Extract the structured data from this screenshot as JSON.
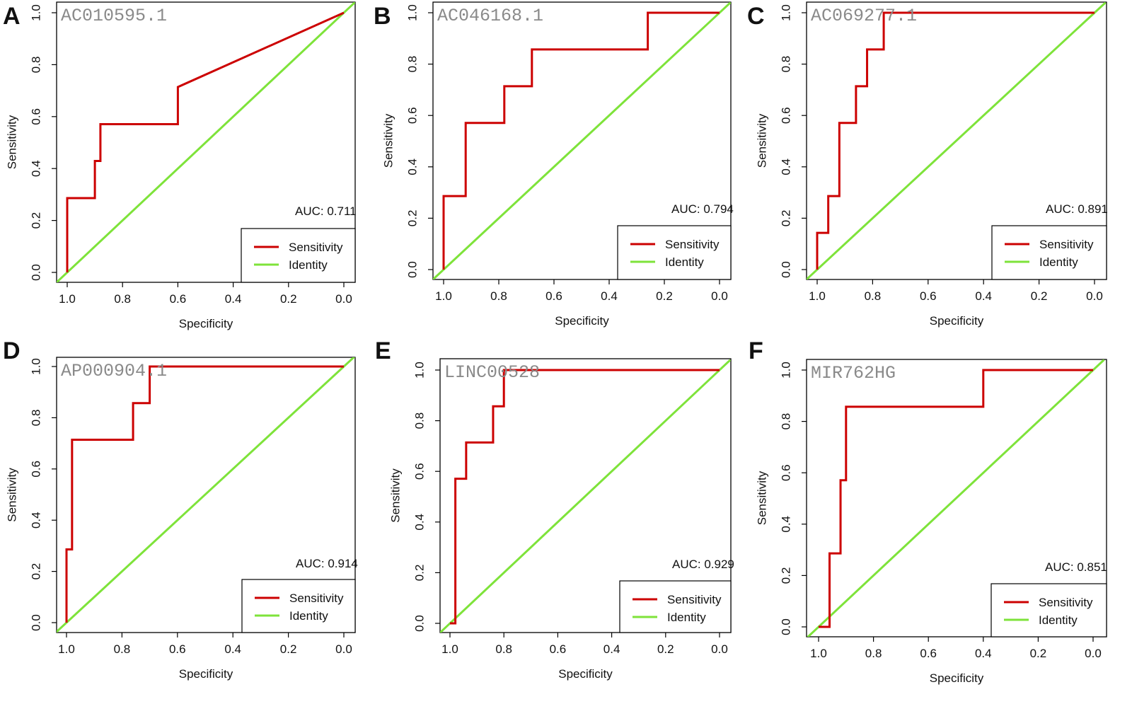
{
  "colors": {
    "roc": "#cc0000",
    "identity": "#7ee33a",
    "frame": "#000000"
  },
  "chart_data": [
    {
      "panel": "A",
      "type": "line",
      "title": "AC010595.1",
      "xlabel": "Specificity",
      "ylabel": "Sensitivity",
      "xlim": [
        1.0,
        0.0
      ],
      "ylim": [
        0.0,
        1.0
      ],
      "xticks": [
        "1.0",
        "0.8",
        "0.6",
        "0.4",
        "0.2",
        "0.0"
      ],
      "yticks": [
        "0.0",
        "0.2",
        "0.4",
        "0.6",
        "0.8",
        "1.0"
      ],
      "auc_text": "AUC: 0.711",
      "legend": [
        "Sensitivity",
        "Identity"
      ],
      "legend_position": "bottom-right",
      "series": [
        {
          "name": "Sensitivity",
          "x": [
            1.0,
            1.0,
            0.9,
            0.9,
            0.88,
            0.88,
            0.6,
            0.6,
            0.0
          ],
          "y": [
            0.0,
            0.286,
            0.286,
            0.429,
            0.429,
            0.571,
            0.571,
            0.714,
            1.0
          ]
        },
        {
          "name": "Identity",
          "x": [
            1.04,
            -0.04
          ],
          "y": [
            -0.04,
            1.04
          ]
        }
      ]
    },
    {
      "panel": "B",
      "type": "line",
      "title": "AC046168.1",
      "xlabel": "Specificity",
      "ylabel": "Sensitivity",
      "xlim": [
        1.0,
        0.0
      ],
      "ylim": [
        0.0,
        1.0
      ],
      "xticks": [
        "1.0",
        "0.8",
        "0.6",
        "0.4",
        "0.2",
        "0.0"
      ],
      "yticks": [
        "0.0",
        "0.2",
        "0.4",
        "0.6",
        "0.8",
        "1.0"
      ],
      "auc_text": "AUC: 0.794",
      "legend": [
        "Sensitivity",
        "Identity"
      ],
      "legend_position": "bottom-right",
      "series": [
        {
          "name": "Sensitivity",
          "x": [
            1.0,
            1.0,
            0.92,
            0.92,
            0.78,
            0.78,
            0.68,
            0.68,
            0.26,
            0.26,
            0.0
          ],
          "y": [
            0.0,
            0.286,
            0.286,
            0.571,
            0.571,
            0.714,
            0.714,
            0.857,
            0.857,
            1.0,
            1.0
          ]
        },
        {
          "name": "Identity",
          "x": [
            1.04,
            -0.04
          ],
          "y": [
            -0.04,
            1.04
          ]
        }
      ]
    },
    {
      "panel": "C",
      "type": "line",
      "title": "AC069277.1",
      "xlabel": "Specificity",
      "ylabel": "Sensitivity",
      "xlim": [
        1.0,
        0.0
      ],
      "ylim": [
        0.0,
        1.0
      ],
      "xticks": [
        "1.0",
        "0.8",
        "0.6",
        "0.4",
        "0.2",
        "0.0"
      ],
      "yticks": [
        "0.0",
        "0.2",
        "0.4",
        "0.6",
        "0.8",
        "1.0"
      ],
      "auc_text": "AUC: 0.891",
      "legend": [
        "Sensitivity",
        "Identity"
      ],
      "legend_position": "bottom-right",
      "series": [
        {
          "name": "Sensitivity",
          "x": [
            1.0,
            1.0,
            0.96,
            0.96,
            0.92,
            0.92,
            0.86,
            0.86,
            0.82,
            0.82,
            0.76,
            0.76,
            0.0
          ],
          "y": [
            0.0,
            0.143,
            0.143,
            0.286,
            0.286,
            0.571,
            0.571,
            0.714,
            0.714,
            0.857,
            0.857,
            1.0,
            1.0
          ]
        },
        {
          "name": "Identity",
          "x": [
            1.04,
            -0.04
          ],
          "y": [
            -0.04,
            1.04
          ]
        }
      ]
    },
    {
      "panel": "D",
      "type": "line",
      "title": "AP000904.1",
      "xlabel": "Specificity",
      "ylabel": "Sensitivity",
      "xlim": [
        1.0,
        0.0
      ],
      "ylim": [
        0.0,
        1.0
      ],
      "xticks": [
        "1.0",
        "0.8",
        "0.6",
        "0.4",
        "0.2",
        "0.0"
      ],
      "yticks": [
        "0.0",
        "0.2",
        "0.4",
        "0.6",
        "0.8",
        "1.0"
      ],
      "auc_text": "AUC: 0.914",
      "legend": [
        "Sensitivity",
        "Identity"
      ],
      "legend_position": "bottom-right",
      "series": [
        {
          "name": "Sensitivity",
          "x": [
            1.0,
            1.0,
            0.98,
            0.98,
            0.76,
            0.76,
            0.7,
            0.7,
            0.0
          ],
          "y": [
            0.0,
            0.286,
            0.286,
            0.714,
            0.714,
            0.857,
            0.857,
            1.0,
            1.0
          ]
        },
        {
          "name": "Identity",
          "x": [
            1.04,
            -0.04
          ],
          "y": [
            -0.04,
            1.04
          ]
        }
      ]
    },
    {
      "panel": "E",
      "type": "line",
      "title": "LINC00528",
      "xlabel": "Specificity",
      "ylabel": "Sensitivity",
      "xlim": [
        1.0,
        0.0
      ],
      "ylim": [
        0.0,
        1.0
      ],
      "xticks": [
        "1.0",
        "0.8",
        "0.6",
        "0.4",
        "0.2",
        "0.0"
      ],
      "yticks": [
        "0.0",
        "0.2",
        "0.4",
        "0.6",
        "0.8",
        "1.0"
      ],
      "auc_text": "AUC: 0.929",
      "legend": [
        "Sensitivity",
        "Identity"
      ],
      "legend_position": "bottom-right",
      "series": [
        {
          "name": "Sensitivity",
          "x": [
            1.0,
            0.98,
            0.98,
            0.94,
            0.94,
            0.84,
            0.84,
            0.8,
            0.8,
            0.0
          ],
          "y": [
            0.0,
            0.0,
            0.571,
            0.571,
            0.714,
            0.714,
            0.857,
            0.857,
            1.0,
            1.0
          ]
        },
        {
          "name": "Identity",
          "x": [
            1.04,
            -0.04
          ],
          "y": [
            -0.04,
            1.04
          ]
        }
      ]
    },
    {
      "panel": "F",
      "type": "line",
      "title": "MIR762HG",
      "xlabel": "Specificity",
      "ylabel": "Sensitivity",
      "xlim": [
        1.0,
        0.0
      ],
      "ylim": [
        0.0,
        1.0
      ],
      "xticks": [
        "1.0",
        "0.8",
        "0.6",
        "0.4",
        "0.2",
        "0.0"
      ],
      "yticks": [
        "0.0",
        "0.2",
        "0.4",
        "0.6",
        "0.8",
        "1.0"
      ],
      "auc_text": "AUC: 0.851",
      "legend": [
        "Sensitivity",
        "Identity"
      ],
      "legend_position": "bottom-right",
      "series": [
        {
          "name": "Sensitivity",
          "x": [
            1.0,
            0.96,
            0.96,
            0.92,
            0.92,
            0.9,
            0.9,
            0.4,
            0.4,
            0.0
          ],
          "y": [
            0.0,
            0.0,
            0.286,
            0.286,
            0.571,
            0.571,
            0.857,
            0.857,
            1.0,
            1.0
          ]
        },
        {
          "name": "Identity",
          "x": [
            1.04,
            -0.04
          ],
          "y": [
            -0.04,
            1.04
          ]
        }
      ]
    }
  ]
}
